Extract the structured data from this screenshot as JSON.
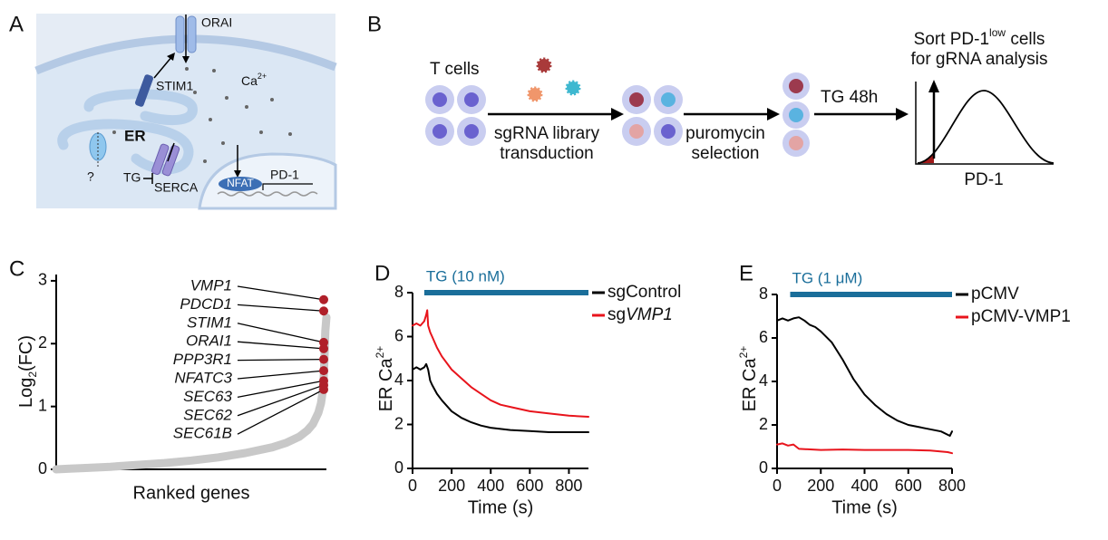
{
  "panels": {
    "A": {
      "letter": "A",
      "labels": {
        "orai": "ORAI",
        "stim1": "STIM1",
        "ca": [
          "Ca",
          "2+"
        ],
        "er": "ER",
        "q": "?",
        "tg": "TG",
        "serca": "SERCA",
        "nfat": "NFAT",
        "pd1": "PD-1"
      }
    },
    "B": {
      "letter": "B",
      "t_cells": "T cells",
      "step1": [
        "sgRNA library",
        "transduction"
      ],
      "step2": [
        "puromycin",
        "selection"
      ],
      "step3": "TG 48h",
      "sort": [
        "Sort PD-1",
        "low",
        " cells"
      ],
      "sort2": "for gRNA analysis",
      "xlabel": "PD-1"
    }
  },
  "chart_data": [
    {
      "letter": "C",
      "type": "scatter",
      "ylabel": [
        "Log",
        "2",
        "(FC)"
      ],
      "xlabel": "Ranked genes",
      "xlim": [
        0,
        100
      ],
      "ylim": [
        0,
        3.1
      ],
      "yticks": [
        0,
        1,
        2,
        3
      ],
      "series": [
        {
          "color": "#c8c8c8",
          "x": [
            0,
            5,
            10,
            20,
            30,
            40,
            50,
            60,
            70,
            80,
            85,
            90,
            93,
            95,
            97,
            98,
            98.5,
            99,
            99.3,
            99.6,
            100
          ],
          "values": [
            0,
            0.01,
            0.02,
            0.04,
            0.07,
            0.1,
            0.14,
            0.19,
            0.26,
            0.35,
            0.42,
            0.52,
            0.62,
            0.72,
            0.9,
            1.05,
            1.2,
            1.45,
            1.8,
            2.2,
            2.42
          ]
        },
        {
          "color": "#b0202a",
          "x": [
            99,
            99,
            99,
            99,
            99,
            99,
            99,
            99,
            99
          ],
          "values": [
            2.7,
            2.52,
            2.02,
            1.92,
            1.75,
            1.57,
            1.41,
            1.34,
            1.27
          ],
          "labels": [
            "VMP1",
            "PDCD1",
            "STIM1",
            "ORAI1",
            "PPP3R1",
            "NFATC3",
            "SEC63",
            "SEC62",
            "SEC61B"
          ]
        }
      ]
    },
    {
      "letter": "D",
      "type": "line",
      "xlabel": "Time (s)",
      "ylabel": [
        "ER Ca",
        "2+"
      ],
      "xlim": [
        0,
        900
      ],
      "ylim": [
        0,
        8
      ],
      "xticks": [
        0,
        200,
        400,
        600,
        800
      ],
      "yticks": [
        0,
        2,
        4,
        6,
        8
      ],
      "annotation": "TG (10 nM)",
      "treatment": [
        60,
        900
      ],
      "series": [
        {
          "name": "sgControl",
          "color": "#000000",
          "x": [
            0,
            20,
            40,
            60,
            70,
            80,
            90,
            100,
            125,
            150,
            200,
            250,
            300,
            350,
            400,
            450,
            500,
            600,
            700,
            800,
            900
          ],
          "values": [
            4.5,
            4.6,
            4.5,
            4.6,
            4.75,
            4.5,
            4.0,
            3.8,
            3.4,
            3.1,
            2.6,
            2.3,
            2.1,
            1.95,
            1.85,
            1.8,
            1.75,
            1.7,
            1.65,
            1.65,
            1.65
          ]
        },
        {
          "name": [
            "sg",
            "VMP1"
          ],
          "color": "#e8141c",
          "x": [
            0,
            20,
            40,
            60,
            70,
            75,
            80,
            90,
            100,
            125,
            150,
            200,
            250,
            300,
            350,
            400,
            450,
            500,
            600,
            700,
            800,
            900
          ],
          "values": [
            6.5,
            6.6,
            6.5,
            6.7,
            7.0,
            7.2,
            6.5,
            6.2,
            6.0,
            5.5,
            5.1,
            4.5,
            4.1,
            3.7,
            3.4,
            3.1,
            2.9,
            2.8,
            2.6,
            2.5,
            2.4,
            2.35
          ]
        }
      ]
    },
    {
      "letter": "E",
      "type": "line",
      "xlabel": "Time (s)",
      "ylabel": [
        "ER Ca",
        "2+"
      ],
      "xlim": [
        0,
        800
      ],
      "ylim": [
        0,
        8
      ],
      "xticks": [
        0,
        200,
        400,
        600,
        800
      ],
      "yticks": [
        0,
        2,
        4,
        6,
        8
      ],
      "annotation": "TG  (1 μM)",
      "treatment": [
        60,
        800
      ],
      "series": [
        {
          "name": "pCMV",
          "color": "#000000",
          "x": [
            0,
            25,
            50,
            75,
            100,
            125,
            150,
            175,
            200,
            250,
            300,
            350,
            400,
            450,
            500,
            550,
            600,
            650,
            700,
            750,
            790,
            800
          ],
          "values": [
            6.8,
            6.9,
            6.8,
            6.9,
            6.95,
            6.8,
            6.6,
            6.5,
            6.3,
            5.8,
            5.0,
            4.1,
            3.4,
            2.9,
            2.5,
            2.2,
            2.0,
            1.9,
            1.8,
            1.7,
            1.5,
            1.7
          ]
        },
        {
          "name": "pCMV-VMP1",
          "color": "#e8141c",
          "x": [
            0,
            25,
            50,
            75,
            100,
            200,
            300,
            400,
            500,
            600,
            700,
            780,
            800
          ],
          "values": [
            1.1,
            1.15,
            1.05,
            1.1,
            0.9,
            0.85,
            0.87,
            0.85,
            0.85,
            0.85,
            0.82,
            0.75,
            0.7
          ]
        }
      ]
    }
  ]
}
